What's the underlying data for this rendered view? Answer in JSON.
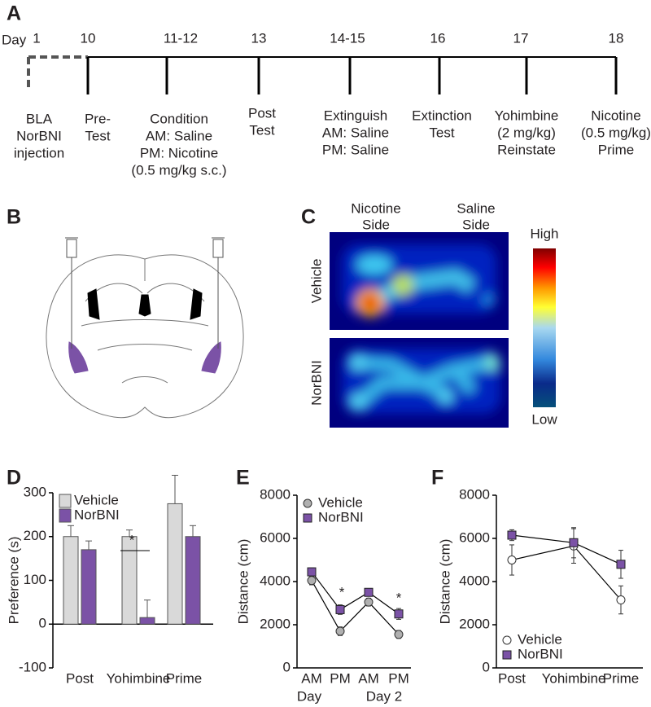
{
  "panel_labels": [
    "A",
    "B",
    "C",
    "D",
    "E",
    "F"
  ],
  "timeline": {
    "day_label": "Day",
    "events": [
      {
        "day": "1",
        "lines": [
          "BLA",
          "NorBNI",
          "injection"
        ]
      },
      {
        "day": "10",
        "lines": [
          "Pre-",
          "Test"
        ]
      },
      {
        "day": "11-12",
        "lines": [
          "Condition",
          "AM: Saline",
          "PM: Nicotine",
          "(0.5 mg/kg s.c.)"
        ]
      },
      {
        "day": "13",
        "lines": [
          "Post",
          "Test"
        ]
      },
      {
        "day": "14-15",
        "lines": [
          "Extinguish",
          "AM: Saline",
          "PM: Saline"
        ]
      },
      {
        "day": "16",
        "lines": [
          "Extinction",
          "Test"
        ]
      },
      {
        "day": "17",
        "lines": [
          "Yohimbine",
          "(2 mg/kg)",
          "Reinstate"
        ]
      },
      {
        "day": "18",
        "lines": [
          "Nicotine",
          "(0.5 mg/kg)",
          "Prime"
        ]
      }
    ]
  },
  "heatmap": {
    "columns": [
      [
        "Nicotine",
        "Side"
      ],
      [
        "Saline",
        "Side"
      ]
    ],
    "rows": [
      "Vehicle",
      "NorBNI"
    ],
    "scale_high": "High",
    "scale_low": "Low"
  },
  "chart_data": [
    {
      "type": "bar",
      "y_label": "Preference (s)",
      "categories": [
        "Post",
        "Yohimbine",
        "Prime"
      ],
      "series": [
        {
          "name": "Vehicle",
          "color": "#d9d9d9",
          "values": [
            200,
            200,
            275
          ],
          "errors": [
            25,
            15,
            65
          ]
        },
        {
          "name": "NorBNI",
          "color": "#7b52a6",
          "values": [
            170,
            15,
            200
          ],
          "errors": [
            20,
            40,
            25
          ]
        }
      ],
      "ylim": [
        -100,
        300
      ],
      "yticks": [
        -100,
        0,
        100,
        200,
        300
      ],
      "legend": "top-left",
      "annotations": [
        "*"
      ]
    },
    {
      "type": "line",
      "y_label": "Distance (cm)",
      "categories": [
        "AM",
        "PM",
        "AM",
        "PM"
      ],
      "x_groups": [
        "Day",
        "Day 2"
      ],
      "series": [
        {
          "name": "Vehicle",
          "color": "#b0b0b0",
          "marker": "circle",
          "values": [
            4050,
            1700,
            3050,
            1550
          ],
          "errors": [
            200,
            200,
            180,
            180
          ]
        },
        {
          "name": "NorBNI",
          "color": "#7b52a6",
          "marker": "square",
          "values": [
            4450,
            2700,
            3500,
            2500
          ],
          "errors": [
            180,
            220,
            150,
            250
          ]
        }
      ],
      "ylim": [
        0,
        8000
      ],
      "yticks": [
        0,
        2000,
        4000,
        6000,
        8000
      ],
      "legend": "top-left",
      "annotations": [
        "*",
        "*"
      ]
    },
    {
      "type": "line",
      "y_label": "Distance (cm)",
      "categories": [
        "Post",
        "Yohimbine",
        "Prime"
      ],
      "series": [
        {
          "name": "Vehicle",
          "color": "#ffffff",
          "marker": "circle",
          "values": [
            5000,
            5650,
            3150
          ],
          "errors": [
            700,
            800,
            650
          ]
        },
        {
          "name": "NorBNI",
          "color": "#7b52a6",
          "marker": "square",
          "values": [
            6150,
            5800,
            4800
          ],
          "errors": [
            250,
            700,
            650
          ]
        }
      ],
      "ylim": [
        0,
        8000
      ],
      "yticks": [
        0,
        2000,
        4000,
        6000,
        8000
      ],
      "legend": "bottom-left"
    }
  ]
}
